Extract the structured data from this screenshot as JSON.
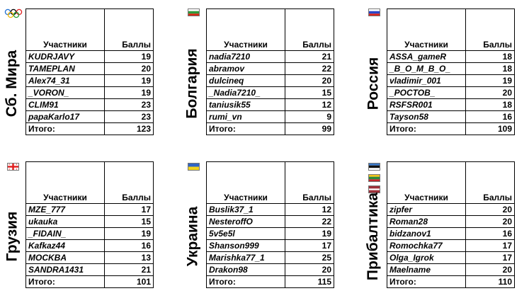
{
  "header": {
    "col_participants": "Участники",
    "col_points": "Баллы",
    "total_label": "Итого:"
  },
  "teams": [
    {
      "name": "Сб. Мира",
      "flag": "olympic-rings-icon",
      "players": [
        {
          "name": "KUDRJAVY",
          "score": "19"
        },
        {
          "name": "TAMEPLAN",
          "score": "20"
        },
        {
          "name": "Alex74_31",
          "score": "19"
        },
        {
          "name": "_VORON_",
          "score": "19"
        },
        {
          "name": "CLIM91",
          "score": "23"
        },
        {
          "name": "papaKarlo17",
          "score": "23"
        }
      ],
      "total": "123"
    },
    {
      "name": "Болгария",
      "flag": "bulgaria-flag-icon",
      "players": [
        {
          "name": "nadia7210",
          "score": "21"
        },
        {
          "name": "abramov",
          "score": "22"
        },
        {
          "name": "dulcineq",
          "score": "20"
        },
        {
          "name": "_Nadia7210_",
          "score": "15"
        },
        {
          "name": "taniusik55",
          "score": "12"
        },
        {
          "name": "rumi_vn",
          "score": "9"
        }
      ],
      "total": "99"
    },
    {
      "name": "Россия",
      "flag": "russia-flag-icon",
      "players": [
        {
          "name": "ASSA_gameR",
          "score": "18"
        },
        {
          "name": "_B_O_M_B_O_",
          "score": "18"
        },
        {
          "name": "vladimir_001",
          "score": "19"
        },
        {
          "name": "_POCTOB_",
          "score": "20"
        },
        {
          "name": "RSFSR001",
          "score": "18"
        },
        {
          "name": "Tayson58",
          "score": "16"
        }
      ],
      "total": "109"
    },
    {
      "name": "Грузия",
      "flag": "georgia-flag-icon",
      "players": [
        {
          "name": "MZE_777",
          "score": "17"
        },
        {
          "name": "ukauka",
          "score": "15"
        },
        {
          "name": "_FIDAIN_",
          "score": "19"
        },
        {
          "name": "Kafkaz44",
          "score": "16"
        },
        {
          "name": "MOCKBA",
          "score": "13"
        },
        {
          "name": "SANDRA1431",
          "score": "21"
        }
      ],
      "total": "101"
    },
    {
      "name": "Украина",
      "flag": "ukraine-flag-icon",
      "players": [
        {
          "name": "Buslik37_1",
          "score": "12"
        },
        {
          "name": "NesteroffO",
          "score": "22"
        },
        {
          "name": "5v5e5l",
          "score": "19"
        },
        {
          "name": "Shanson999",
          "score": "17"
        },
        {
          "name": "Marishka77_1",
          "score": "25"
        },
        {
          "name": "Drakon98",
          "score": "20"
        }
      ],
      "total": "115"
    },
    {
      "name": "Прибалтика",
      "flag": "baltic-flags-icon",
      "players": [
        {
          "name": "zipfer",
          "score": "20"
        },
        {
          "name": "Roman28",
          "score": "20"
        },
        {
          "name": "bidzanov1",
          "score": "16"
        },
        {
          "name": "Romochka77",
          "score": "17"
        },
        {
          "name": "Olga_Igrok",
          "score": "17"
        },
        {
          "name": "Maelname",
          "score": "20"
        }
      ],
      "total": "110"
    }
  ]
}
